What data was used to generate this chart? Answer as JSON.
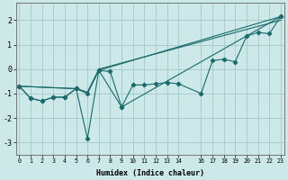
{
  "background_color": "#cce8e8",
  "grid_color": "#aacccc",
  "line_color": "#1a6b6b",
  "x_min": -0.3,
  "x_max": 23.3,
  "y_min": -3.5,
  "y_max": 2.7,
  "xlabel": "Humidex (Indice chaleur)",
  "yticks": [
    -3,
    -2,
    -1,
    0,
    1,
    2
  ],
  "xtick_positions": [
    0,
    1,
    2,
    3,
    4,
    5,
    6,
    7,
    8,
    9,
    10,
    11,
    12,
    13,
    14,
    16,
    17,
    18,
    19,
    20,
    21,
    22,
    23
  ],
  "xtick_labels": [
    "0",
    "1",
    "2",
    "3",
    "4",
    "5",
    "6",
    "7",
    "8",
    "9",
    "10",
    "11",
    "12",
    "13",
    "14",
    "16",
    "17",
    "18",
    "19",
    "20",
    "21",
    "22",
    "23"
  ],
  "line1_x": [
    0,
    1,
    2,
    3,
    4,
    5,
    6,
    7,
    8,
    9,
    10,
    11,
    12,
    13,
    14,
    16,
    17,
    18,
    19,
    20,
    21,
    22,
    23
  ],
  "line1_y": [
    -0.7,
    -1.2,
    -1.3,
    -1.15,
    -1.15,
    -0.8,
    -1.0,
    -0.05,
    -0.1,
    -1.55,
    -0.65,
    -0.65,
    -0.6,
    -0.55,
    -0.6,
    -1.0,
    0.35,
    0.4,
    0.3,
    1.35,
    1.5,
    1.45,
    2.15
  ],
  "line2_x": [
    0,
    1,
    2,
    3,
    4,
    5,
    6,
    7,
    9,
    23
  ],
  "line2_y": [
    -0.7,
    -1.2,
    -1.3,
    -1.15,
    -1.15,
    -0.8,
    -2.85,
    -0.05,
    -1.55,
    2.15
  ],
  "line3_x": [
    0,
    5,
    6,
    7,
    23
  ],
  "line3_y": [
    -0.7,
    -0.8,
    -0.95,
    -0.05,
    2.15
  ],
  "line4_x": [
    0,
    5,
    6,
    7,
    23
  ],
  "line4_y": [
    -0.7,
    -0.8,
    -0.95,
    -0.0,
    2.0
  ]
}
